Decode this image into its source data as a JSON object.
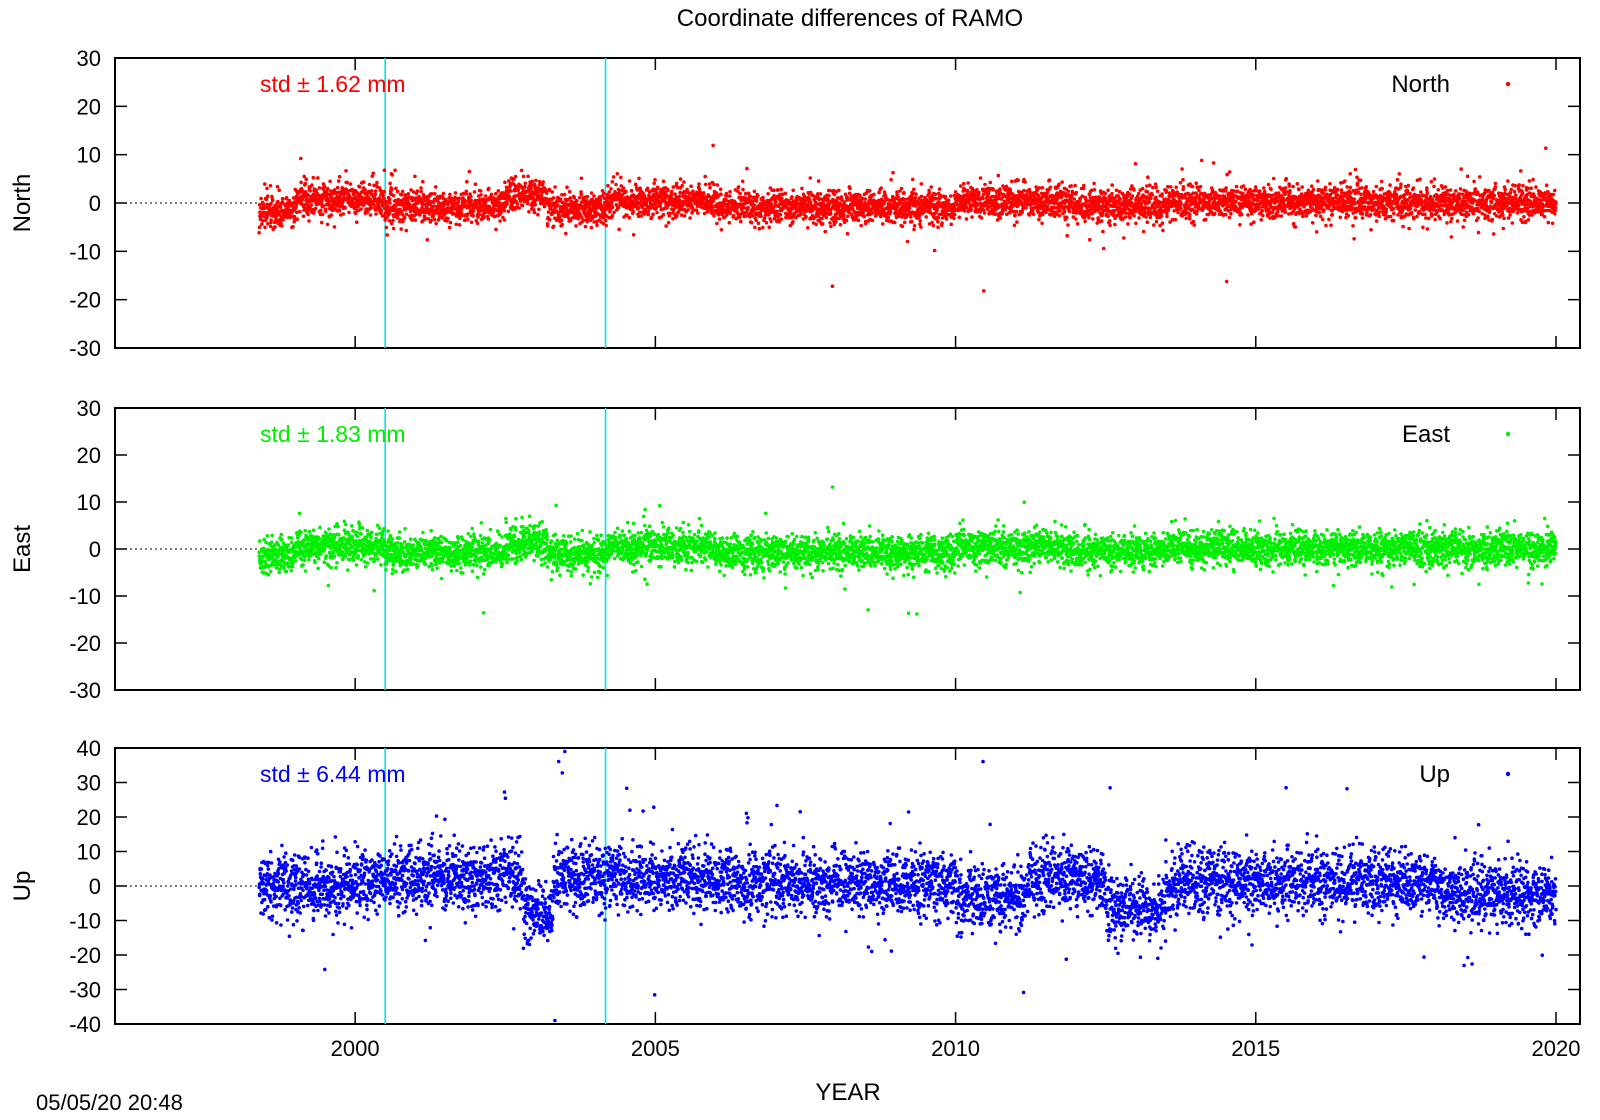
{
  "title": "Coordinate differences of RAMO",
  "timestamp": "05/05/20 20:48",
  "chart_data": {
    "type": "scatter",
    "xlabel": "YEAR",
    "xlim": [
      1996,
      2020.4
    ],
    "xticks": [
      2000,
      2005,
      2010,
      2015,
      2020
    ],
    "data_start": 1998.4,
    "data_end": 2020.0,
    "vlines": [
      2000.5,
      2004.17
    ],
    "vline_color": "#00e5e5",
    "panels": [
      {
        "id": "north",
        "ylabel": "North",
        "legend": "North",
        "std_label": "std ± 1.62 mm",
        "color": "#ff0000",
        "ylim": [
          -30,
          30
        ],
        "yticks": [
          -30,
          -20,
          -10,
          0,
          10,
          20,
          30
        ],
        "std_mm": 1.62,
        "amplitude": 2.4,
        "segments": [
          {
            "x": [
              1998.4,
              1999.0
            ],
            "mean": -1.5
          },
          {
            "x": [
              1999.0,
              2000.5
            ],
            "mean": 0.8
          },
          {
            "x": [
              2000.5,
              2002.5
            ],
            "mean": -0.8
          },
          {
            "x": [
              2002.5,
              2003.2
            ],
            "mean": 1.5
          },
          {
            "x": [
              2003.2,
              2004.2
            ],
            "mean": -1.2
          },
          {
            "x": [
              2004.2,
              2006.0
            ],
            "mean": 0.5
          },
          {
            "x": [
              2006.0,
              2010.0
            ],
            "mean": -0.8
          },
          {
            "x": [
              2010.0,
              2012.0
            ],
            "mean": 0.3
          },
          {
            "x": [
              2012.0,
              2013.5
            ],
            "mean": -0.5
          },
          {
            "x": [
              2013.5,
              2020.0
            ],
            "mean": 0.2
          }
        ]
      },
      {
        "id": "east",
        "ylabel": "East",
        "legend": "East",
        "std_label": "std ± 1.83 mm",
        "color": "#00ee00",
        "ylim": [
          -30,
          30
        ],
        "yticks": [
          -30,
          -20,
          -10,
          0,
          10,
          20,
          30
        ],
        "std_mm": 1.83,
        "amplitude": 2.6,
        "segments": [
          {
            "x": [
              1998.4,
              1999.0
            ],
            "mean": -1.5
          },
          {
            "x": [
              1999.0,
              2000.5
            ],
            "mean": 0.8
          },
          {
            "x": [
              2000.5,
              2002.5
            ],
            "mean": -0.8
          },
          {
            "x": [
              2002.5,
              2003.2
            ],
            "mean": 1.5
          },
          {
            "x": [
              2003.2,
              2004.2
            ],
            "mean": -1.2
          },
          {
            "x": [
              2004.2,
              2006.0
            ],
            "mean": 0.5
          },
          {
            "x": [
              2006.0,
              2010.0
            ],
            "mean": -0.8
          },
          {
            "x": [
              2010.0,
              2012.0
            ],
            "mean": 0.3
          },
          {
            "x": [
              2012.0,
              2013.5
            ],
            "mean": -0.5
          },
          {
            "x": [
              2013.5,
              2020.0
            ],
            "mean": 0.2
          }
        ]
      },
      {
        "id": "up",
        "ylabel": "Up",
        "legend": "Up",
        "std_label": "std ± 6.44 mm",
        "color": "#0000ff",
        "ylim": [
          -40,
          40
        ],
        "yticks": [
          -40,
          -30,
          -20,
          -10,
          0,
          10,
          20,
          30,
          40
        ],
        "std_mm": 6.44,
        "amplitude": 6.5,
        "segments": [
          {
            "x": [
              1998.4,
              2000.0
            ],
            "mean": 0.0
          },
          {
            "x": [
              2000.0,
              2002.8
            ],
            "mean": 2.0
          },
          {
            "x": [
              2002.8,
              2003.3
            ],
            "mean": -8.0
          },
          {
            "x": [
              2003.3,
              2006.0
            ],
            "mean": 2.0
          },
          {
            "x": [
              2006.0,
              2010.0
            ],
            "mean": 1.0
          },
          {
            "x": [
              2010.0,
              2011.2
            ],
            "mean": -3.0
          },
          {
            "x": [
              2011.2,
              2012.5
            ],
            "mean": 2.0
          },
          {
            "x": [
              2012.5,
              2013.5
            ],
            "mean": -7.0
          },
          {
            "x": [
              2013.5,
              2018.0
            ],
            "mean": 1.0
          },
          {
            "x": [
              2018.0,
              2020.0
            ],
            "mean": -2.0
          }
        ]
      }
    ],
    "grid": false,
    "legend_position": "top-right"
  }
}
